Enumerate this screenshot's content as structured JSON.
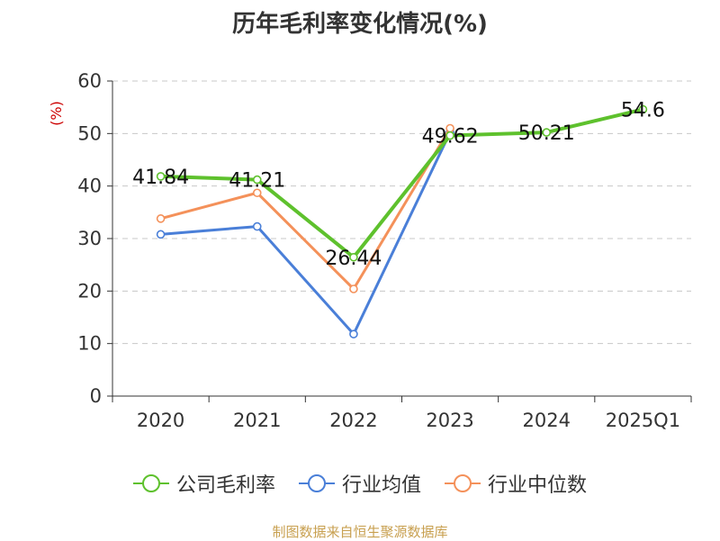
{
  "title": "历年毛利率变化情况(%)",
  "source": "制图数据来自恒生聚源数据库",
  "chart_data": {
    "type": "line",
    "title": "历年毛利率变化情况(%)",
    "xlabel": "",
    "ylabel": "(%)",
    "categories": [
      "2020",
      "2021",
      "2022",
      "2023",
      "2024",
      "2025Q1"
    ],
    "ylim": [
      0,
      60
    ],
    "yticks": [
      0,
      10,
      20,
      30,
      40,
      50,
      60
    ],
    "grid": true,
    "legend_position": "bottom",
    "series": [
      {
        "name": "公司毛利率",
        "color": "#5ec12d",
        "values": [
          41.84,
          41.21,
          26.44,
          49.62,
          50.21,
          54.6
        ],
        "labels": [
          "41.84",
          "41.21",
          "26.44",
          "49.62",
          "50.21",
          "54.6"
        ]
      },
      {
        "name": "行业均值",
        "color": "#4a7fd8",
        "values": [
          30.8,
          32.3,
          11.8,
          50.2,
          null,
          null
        ]
      },
      {
        "name": "行业中位数",
        "color": "#f4915a",
        "values": [
          33.8,
          38.7,
          20.4,
          51.0,
          null,
          null
        ]
      }
    ]
  }
}
